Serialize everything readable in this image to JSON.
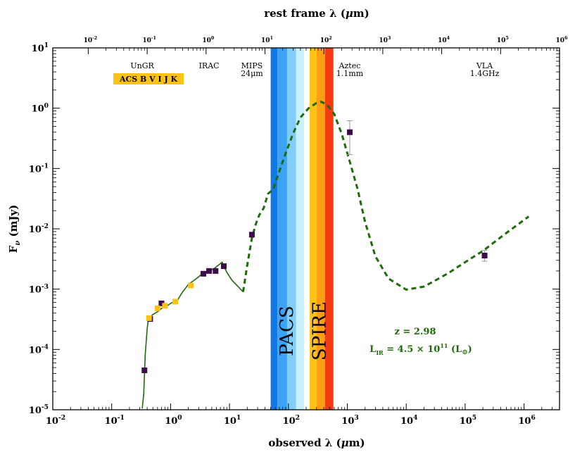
{
  "chart_data": {
    "type": "scatter",
    "xlabel_bottom": "observed λ (μm)",
    "xlabel_top": "rest frame λ (μm)",
    "ylabel": "F_ν (mJy)",
    "x_scale": "log",
    "y_scale": "log",
    "xlim": [
      0.01,
      4000000
    ],
    "ylim": [
      1e-05,
      10
    ],
    "rest_xlim": [
      0.0025,
      1000000
    ],
    "bottom_ticks": [
      {
        "base": "10",
        "exp": "-2",
        "value": 0.01
      },
      {
        "base": "10",
        "exp": "-1",
        "value": 0.1
      },
      {
        "base": "10",
        "exp": "0",
        "value": 1
      },
      {
        "base": "10",
        "exp": "1",
        "value": 10
      },
      {
        "base": "10",
        "exp": "2",
        "value": 100
      },
      {
        "base": "10",
        "exp": "3",
        "value": 1000
      },
      {
        "base": "10",
        "exp": "4",
        "value": 10000
      },
      {
        "base": "10",
        "exp": "5",
        "value": 100000
      },
      {
        "base": "10",
        "exp": "6",
        "value": 1000000
      }
    ],
    "top_ticks": [
      {
        "base": "10",
        "exp": "-2",
        "value": 0.01
      },
      {
        "base": "10",
        "exp": "-1",
        "value": 0.1
      },
      {
        "base": "10",
        "exp": "0",
        "value": 1
      },
      {
        "base": "10",
        "exp": "1",
        "value": 10
      },
      {
        "base": "10",
        "exp": "2",
        "value": 100
      },
      {
        "base": "10",
        "exp": "3",
        "value": 1000
      },
      {
        "base": "10",
        "exp": "4",
        "value": 10000
      },
      {
        "base": "10",
        "exp": "5",
        "value": 100000
      },
      {
        "base": "10",
        "exp": "6",
        "value": 1000000
      }
    ],
    "y_ticks": [
      {
        "base": "10",
        "exp": "-5",
        "value": 1e-05
      },
      {
        "base": "10",
        "exp": "-4",
        "value": 0.0001
      },
      {
        "base": "10",
        "exp": "-3",
        "value": 0.001
      },
      {
        "base": "10",
        "exp": "-2",
        "value": 0.01
      },
      {
        "base": "10",
        "exp": "-1",
        "value": 0.1
      },
      {
        "base": "10",
        "exp": "0",
        "value": 1
      },
      {
        "base": "10",
        "exp": "1",
        "value": 10
      }
    ],
    "bands": [
      {
        "name": "PACS-70",
        "from": 50,
        "to": 65,
        "color": "#1079e6"
      },
      {
        "name": "PACS-100",
        "from": 65,
        "to": 95,
        "color": "#3ba3f5"
      },
      {
        "name": "PACS-160",
        "from": 95,
        "to": 135,
        "color": "#7fcdf8"
      },
      {
        "name": "PACS-edge",
        "from": 135,
        "to": 185,
        "color": "#c9f0fd"
      },
      {
        "name": "SPIRE-250",
        "from": 230,
        "to": 300,
        "color": "#fcc215"
      },
      {
        "name": "SPIRE-350",
        "from": 300,
        "to": 420,
        "color": "#fd9f10"
      },
      {
        "name": "SPIRE-500",
        "from": 420,
        "to": 580,
        "color": "#f53a10"
      }
    ],
    "band_labels": [
      {
        "text": "PACS",
        "x": 95
      },
      {
        "text": "SPIRE",
        "x": 340
      }
    ],
    "instrument_labels": [
      {
        "text": "UnGR",
        "x": 0.33,
        "line": 1
      },
      {
        "text": "IRAC",
        "x": 4.5,
        "line": 1
      },
      {
        "text": "MIPS",
        "x": 24,
        "line": 1
      },
      {
        "text": "24μm",
        "x": 24,
        "line": 2
      },
      {
        "text": "Aztec",
        "x": 1100,
        "line": 1
      },
      {
        "text": "1.1mm",
        "x": 1100,
        "line": 2
      },
      {
        "text": "VLA",
        "x": 214000,
        "line": 1
      },
      {
        "text": "1.4GHz",
        "x": 214000,
        "line": 2
      }
    ],
    "optical_box_label": "ACS  B  V  I  J  K",
    "photometry_purple": [
      {
        "x": 0.36,
        "y": 4.5e-05
      },
      {
        "x": 0.45,
        "y": 0.00032
      },
      {
        "x": 0.7,
        "y": 0.00058
      },
      {
        "x": 3.6,
        "y": 0.0018
      },
      {
        "x": 4.5,
        "y": 0.002
      },
      {
        "x": 5.8,
        "y": 0.002
      },
      {
        "x": 8.0,
        "y": 0.0024
      },
      {
        "x": 24,
        "y": 0.008
      },
      {
        "x": 1100,
        "y": 0.4,
        "err_lo": 0.17,
        "err_hi": 0.62
      },
      {
        "x": 214000,
        "y": 0.0036,
        "err_lo": 0.0029,
        "err_hi": 0.0044
      }
    ],
    "photometry_yellow": [
      {
        "x": 0.43,
        "y": 0.00033
      },
      {
        "x": 0.6,
        "y": 0.00048
      },
      {
        "x": 0.8,
        "y": 0.00053
      },
      {
        "x": 1.2,
        "y": 0.00062
      },
      {
        "x": 2.2,
        "y": 0.00115
      }
    ],
    "model_solid": [
      [
        0.33,
        1.05e-05
      ],
      [
        0.35,
        1.8e-05
      ],
      [
        0.37,
        8e-05
      ],
      [
        0.4,
        0.00022
      ],
      [
        0.42,
        0.00032
      ],
      [
        0.5,
        0.00038
      ],
      [
        0.6,
        0.00042
      ],
      [
        0.7,
        0.00048
      ],
      [
        0.85,
        0.00052
      ],
      [
        1.0,
        0.00058
      ],
      [
        1.3,
        0.00065
      ],
      [
        1.6,
        0.0009
      ],
      [
        2.0,
        0.0012
      ],
      [
        2.5,
        0.0014
      ],
      [
        3.0,
        0.0016
      ],
      [
        3.6,
        0.0019
      ],
      [
        4.5,
        0.002
      ],
      [
        5.5,
        0.0022
      ],
      [
        6.5,
        0.0025
      ],
      [
        7.5,
        0.0028
      ],
      [
        9.0,
        0.0019
      ],
      [
        11,
        0.0014
      ],
      [
        14,
        0.0011
      ],
      [
        17,
        0.0009
      ]
    ],
    "model_dashed": [
      [
        17,
        0.0009
      ],
      [
        20,
        0.0025
      ],
      [
        24,
        0.007
      ],
      [
        28,
        0.012
      ],
      [
        32,
        0.017
      ],
      [
        38,
        0.022
      ],
      [
        45,
        0.038
      ],
      [
        55,
        0.045
      ],
      [
        70,
        0.09
      ],
      [
        90,
        0.18
      ],
      [
        120,
        0.38
      ],
      [
        160,
        0.7
      ],
      [
        220,
        1.0
      ],
      [
        300,
        1.22
      ],
      [
        360,
        1.28
      ],
      [
        450,
        1.15
      ],
      [
        600,
        0.8
      ],
      [
        800,
        0.38
      ],
      [
        1100,
        0.13
      ],
      [
        1500,
        0.045
      ],
      [
        2000,
        0.013
      ],
      [
        3000,
        0.0035
      ],
      [
        5000,
        0.0015
      ],
      [
        10000,
        0.00098
      ],
      [
        20000,
        0.0011
      ],
      [
        50000,
        0.0018
      ],
      [
        100000,
        0.0028
      ],
      [
        200000,
        0.0043
      ],
      [
        500000,
        0.0085
      ],
      [
        1200000,
        0.016
      ]
    ],
    "annotation_z": "z = 2.98",
    "annotation_lir": {
      "prefix": "L",
      "sub": "IR",
      "middle": " = 4.5 × 10",
      "sup": "11",
      "suffix": " (L",
      "sun": "⊙",
      "end": ")"
    },
    "colors": {
      "model": "#1f6b0c",
      "marker_purple": "#3d0a4a",
      "marker_yellow": "#fcc215",
      "optical_box": "#fcc215",
      "errorbar": "#999999"
    }
  }
}
